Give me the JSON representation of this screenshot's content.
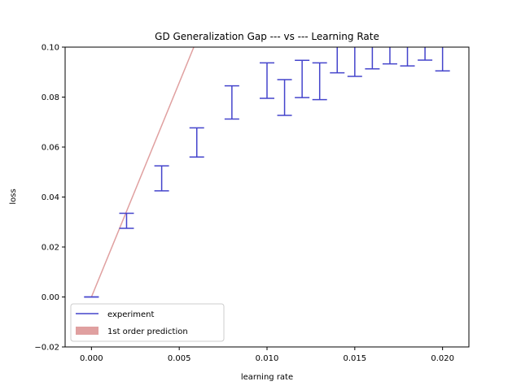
{
  "chart_data": {
    "type": "errorbar",
    "title": "GD Generalization Gap --- vs --- Learning Rate",
    "xlabel": "learning rate",
    "ylabel": "loss",
    "xlim": [
      -0.0015,
      0.0215
    ],
    "ylim": [
      -0.02,
      0.1
    ],
    "x_ticks": [
      0.0,
      0.005,
      0.01,
      0.015,
      0.02
    ],
    "x_tick_labels": [
      "0.000",
      "0.005",
      "0.010",
      "0.015",
      "0.020"
    ],
    "y_ticks": [
      -0.02,
      0.0,
      0.02,
      0.04,
      0.06,
      0.08,
      0.1
    ],
    "y_tick_labels": [
      "−0.02",
      "0.00",
      "0.02",
      "0.04",
      "0.06",
      "0.08",
      "0.10"
    ],
    "series": [
      {
        "name": "experiment",
        "kind": "errorbar",
        "color": "#4444cc",
        "points": [
          {
            "x": 0.0,
            "low": 0.0,
            "high": 0.0
          },
          {
            "x": 0.002,
            "low": 0.0275,
            "high": 0.0335
          },
          {
            "x": 0.004,
            "low": 0.0425,
            "high": 0.0525
          },
          {
            "x": 0.006,
            "low": 0.056,
            "high": 0.0677
          },
          {
            "x": 0.008,
            "low": 0.0712,
            "high": 0.0845
          },
          {
            "x": 0.01,
            "low": 0.0795,
            "high": 0.0937
          },
          {
            "x": 0.011,
            "low": 0.0727,
            "high": 0.087
          },
          {
            "x": 0.012,
            "low": 0.0798,
            "high": 0.0947
          },
          {
            "x": 0.013,
            "low": 0.079,
            "high": 0.0937
          },
          {
            "x": 0.014,
            "low": 0.0897,
            "high": 0.104
          },
          {
            "x": 0.015,
            "low": 0.0883,
            "high": 0.104
          },
          {
            "x": 0.016,
            "low": 0.0913,
            "high": 0.104
          },
          {
            "x": 0.017,
            "low": 0.0933,
            "high": 0.104
          },
          {
            "x": 0.018,
            "low": 0.0925,
            "high": 0.104
          },
          {
            "x": 0.019,
            "low": 0.0948,
            "high": 0.104
          },
          {
            "x": 0.02,
            "low": 0.0905,
            "high": 0.104
          }
        ]
      },
      {
        "name": "1st order prediction",
        "kind": "line",
        "color": "#e0a0a0",
        "x": [
          0.0,
          0.00583
        ],
        "y": [
          0.0,
          0.1
        ]
      }
    ],
    "legend": {
      "location": "lower-left",
      "entries": [
        {
          "label": "experiment",
          "color": "#4444cc",
          "style": "line"
        },
        {
          "label": "1st order prediction",
          "color": "#e0a0a0",
          "style": "patch"
        }
      ]
    },
    "grid": false
  }
}
